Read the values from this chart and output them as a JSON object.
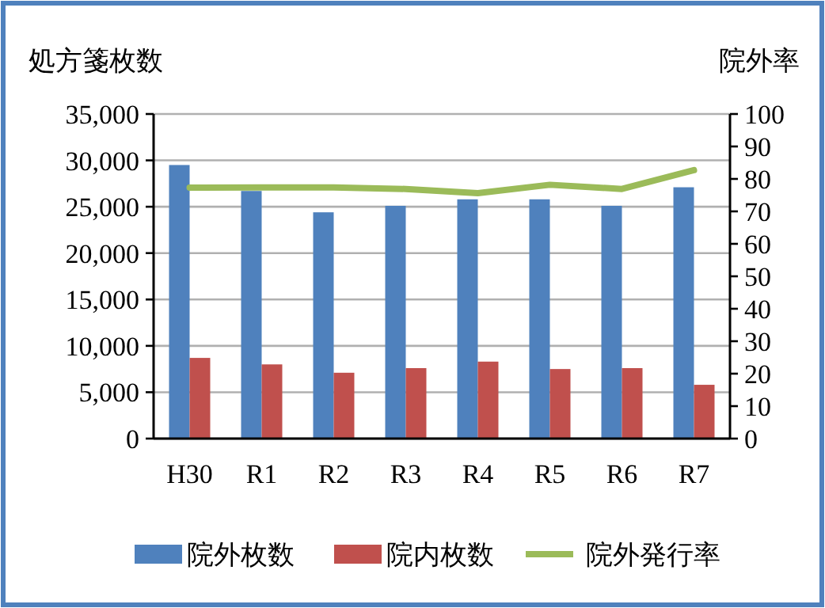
{
  "chart_data": {
    "type": "bar",
    "ylabel": "処方箋枚数",
    "y2label": "院外率",
    "categories": [
      "H30",
      "R1",
      "R2",
      "R3",
      "R4",
      "R5",
      "R6",
      "R7"
    ],
    "series": [
      {
        "name": "院外枚数",
        "color": "#4f81bd",
        "values": [
          29500,
          26700,
          24400,
          25100,
          25800,
          25800,
          25100,
          27100
        ]
      },
      {
        "name": "院内枚数",
        "color": "#c0504d",
        "values": [
          8700,
          8000,
          7100,
          7600,
          8300,
          7500,
          7600,
          5800
        ]
      },
      {
        "name": "院外発行率",
        "type": "line",
        "axis": "y2",
        "color": "#9bbb59",
        "values": [
          77.3,
          77.4,
          77.4,
          76.9,
          75.6,
          78.2,
          76.9,
          82.7
        ]
      }
    ],
    "ylim": [
      0,
      35000
    ],
    "yticks": [
      0,
      {
        "value": 5000,
        "label": "5,000"
      },
      {
        "value": 10000,
        "label": "10,000"
      },
      {
        "value": 15000,
        "label": "15,000"
      },
      {
        "value": 20000,
        "label": "20,000"
      },
      {
        "value": 25000,
        "label": "25,000"
      },
      {
        "value": 30000,
        "label": "30,000"
      },
      {
        "value": 35000,
        "label": "35,000"
      }
    ],
    "y2lim": [
      0,
      100
    ],
    "y2ticks": [
      0,
      10,
      20,
      30,
      40,
      50,
      60,
      70,
      80,
      90,
      100
    ],
    "grid": "y",
    "legend": "bottom",
    "marker": "none",
    "line_style": "solid"
  }
}
